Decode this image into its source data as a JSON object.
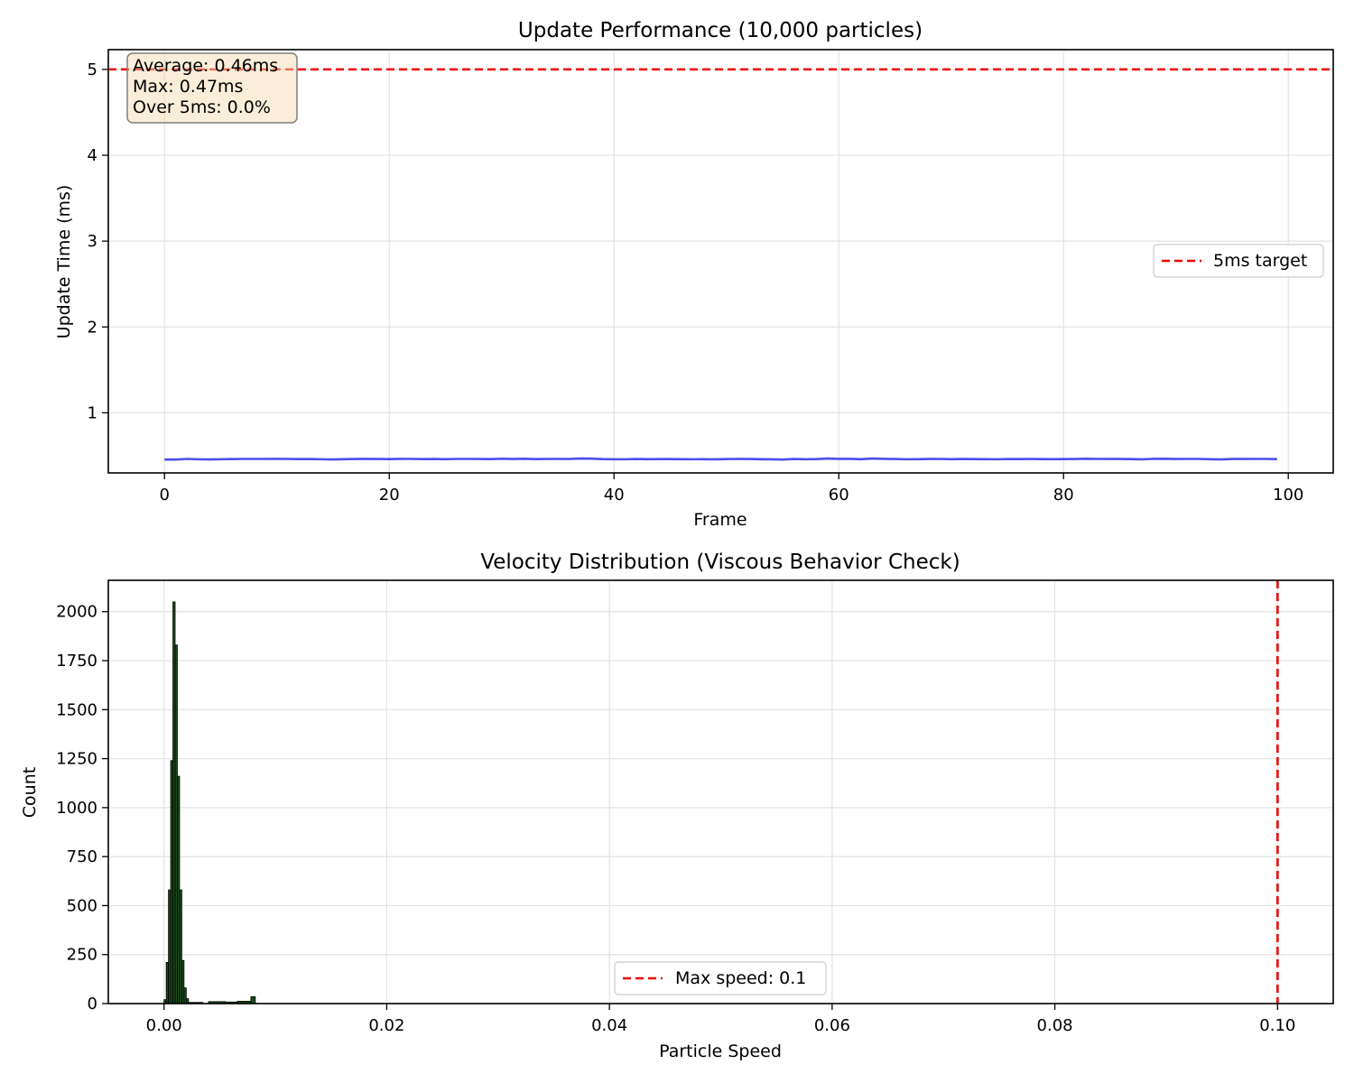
{
  "chart_data": [
    {
      "type": "line",
      "title": "Update Performance (10,000 particles)",
      "xlabel": "Frame",
      "ylabel": "Update Time (ms)",
      "xlim": [
        -5,
        104
      ],
      "ylim": [
        0.3,
        5.23
      ],
      "xticks": [
        0,
        20,
        40,
        60,
        80,
        100
      ],
      "yticks": [
        1,
        2,
        3,
        4,
        5
      ],
      "grid": true,
      "series": [
        {
          "name": "",
          "color": "#3b3bea",
          "x_start": 0,
          "values": [
            0.456,
            0.456,
            0.463,
            0.459,
            0.457,
            0.459,
            0.461,
            0.463,
            0.463,
            0.463,
            0.464,
            0.463,
            0.461,
            0.461,
            0.459,
            0.457,
            0.46,
            0.462,
            0.464,
            0.462,
            0.461,
            0.464,
            0.463,
            0.461,
            0.462,
            0.46,
            0.463,
            0.463,
            0.462,
            0.461,
            0.465,
            0.462,
            0.465,
            0.461,
            0.462,
            0.463,
            0.462,
            0.468,
            0.466,
            0.461,
            0.459,
            0.459,
            0.462,
            0.46,
            0.461,
            0.461,
            0.46,
            0.459,
            0.46,
            0.458,
            0.461,
            0.463,
            0.462,
            0.46,
            0.458,
            0.456,
            0.462,
            0.459,
            0.461,
            0.467,
            0.464,
            0.464,
            0.46,
            0.468,
            0.464,
            0.462,
            0.459,
            0.46,
            0.462,
            0.463,
            0.46,
            0.462,
            0.461,
            0.46,
            0.459,
            0.461,
            0.461,
            0.462,
            0.461,
            0.46,
            0.461,
            0.462,
            0.465,
            0.463,
            0.462,
            0.462,
            0.461,
            0.458,
            0.464,
            0.465,
            0.462,
            0.463,
            0.463,
            0.46,
            0.457,
            0.462,
            0.462,
            0.463,
            0.463,
            0.461
          ]
        }
      ],
      "hlines": [
        {
          "y": 5,
          "color": "#ee0000",
          "style": "dashed",
          "label": "5ms target"
        }
      ],
      "legend": {
        "position": "center-right",
        "entries": [
          "5ms target"
        ]
      },
      "annotation": {
        "position": "top-left",
        "lines": [
          "Average: 0.46ms",
          "Max: 0.47ms",
          "Over 5ms: 0.0%"
        ],
        "background": "#f5deb3"
      }
    },
    {
      "type": "histogram",
      "title": "Velocity Distribution (Viscous Behavior Check)",
      "xlabel": "Particle Speed",
      "ylabel": "Count",
      "xlim": [
        -0.005,
        0.105
      ],
      "ylim": [
        0,
        2160
      ],
      "xticks": [
        0.0,
        0.02,
        0.04,
        0.06,
        0.08,
        0.1
      ],
      "xtick_labels": [
        "0.00",
        "0.02",
        "0.04",
        "0.06",
        "0.08",
        "0.10"
      ],
      "yticks": [
        0,
        250,
        500,
        750,
        1000,
        1250,
        1500,
        1750,
        2000
      ],
      "grid": true,
      "bar_color": "#1a4d1a",
      "edge_color": "#000000",
      "bins": [
        {
          "x0": 0.0,
          "x1": 0.0002,
          "count": 20
        },
        {
          "x0": 0.0002,
          "x1": 0.0004,
          "count": 210
        },
        {
          "x0": 0.0004,
          "x1": 0.0006,
          "count": 580
        },
        {
          "x0": 0.0006,
          "x1": 0.0008,
          "count": 1240
        },
        {
          "x0": 0.0008,
          "x1": 0.001,
          "count": 2050
        },
        {
          "x0": 0.001,
          "x1": 0.0012,
          "count": 1830
        },
        {
          "x0": 0.0012,
          "x1": 0.0014,
          "count": 1160
        },
        {
          "x0": 0.0014,
          "x1": 0.0016,
          "count": 580
        },
        {
          "x0": 0.0016,
          "x1": 0.0018,
          "count": 220
        },
        {
          "x0": 0.0018,
          "x1": 0.002,
          "count": 80
        },
        {
          "x0": 0.002,
          "x1": 0.0022,
          "count": 25
        },
        {
          "x0": 0.0022,
          "x1": 0.0035,
          "count": 6
        },
        {
          "x0": 0.004,
          "x1": 0.0055,
          "count": 10
        },
        {
          "x0": 0.0055,
          "x1": 0.0066,
          "count": 8
        },
        {
          "x0": 0.0066,
          "x1": 0.0078,
          "count": 12
        },
        {
          "x0": 0.0078,
          "x1": 0.0082,
          "count": 35
        }
      ],
      "vlines": [
        {
          "x": 0.1,
          "color": "#ee0000",
          "style": "dashed",
          "label": "Max speed: 0.1"
        }
      ],
      "legend": {
        "position": "bottom-center",
        "entries": [
          "Max speed: 0.1"
        ]
      }
    }
  ]
}
